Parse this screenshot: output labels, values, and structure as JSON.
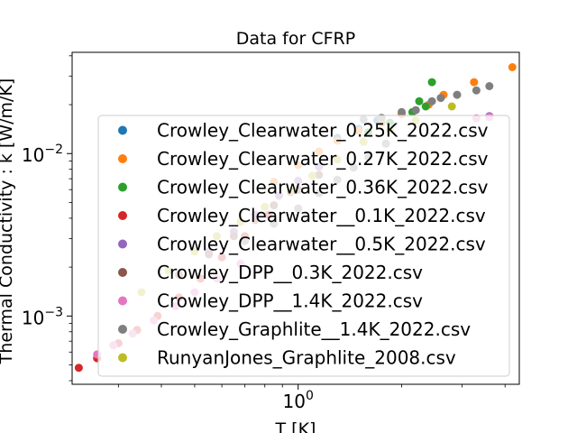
{
  "chart_data": {
    "type": "scatter",
    "title": "Data for CFRP",
    "xlabel": "T [K]",
    "ylabel": "Thermal Conductivity : k [W/m/K]",
    "xscale": "log",
    "yscale": "log",
    "xlim": [
      0.22,
      4.4
    ],
    "ylim": [
      0.00038,
      0.042
    ],
    "x_ticks": [
      {
        "value": 1,
        "base": "10",
        "exp": "0"
      }
    ],
    "y_ticks": [
      {
        "value": 0.001,
        "base": "10",
        "exp": "−3"
      },
      {
        "value": 0.01,
        "base": "10",
        "exp": "−2"
      }
    ],
    "grid": false,
    "legend_position": "center-right",
    "series": [
      {
        "name": "Crowley_Clearwater_0.25K_2022.csv",
        "color": "#1f77b4",
        "points": [
          [
            1.3,
            0.0125
          ],
          [
            1.5,
            0.0142
          ],
          [
            1.7,
            0.016
          ]
        ]
      },
      {
        "name": "Crowley_Clearwater_0.27K_2022.csv",
        "color": "#ff7f0e",
        "points": [
          [
            0.85,
            0.0067
          ],
          [
            1.0,
            0.0085
          ],
          [
            1.15,
            0.0103
          ],
          [
            1.3,
            0.012
          ],
          [
            1.5,
            0.0138
          ],
          [
            1.75,
            0.0155
          ],
          [
            2.0,
            0.0175
          ],
          [
            2.4,
            0.02
          ],
          [
            2.65,
            0.023
          ],
          [
            3.25,
            0.0275
          ],
          [
            4.2,
            0.034
          ]
        ]
      },
      {
        "name": "Crowley_Clearwater_0.36K_2022.csv",
        "color": "#2ca02c",
        "points": [
          [
            1.6,
            0.0135
          ],
          [
            1.85,
            0.0155
          ],
          [
            2.15,
            0.018
          ],
          [
            2.25,
            0.021
          ],
          [
            2.35,
            0.0195
          ],
          [
            2.45,
            0.0275
          ]
        ]
      },
      {
        "name": "Crowley_Clearwater__0.1K_2022.csv",
        "color": "#d62728",
        "points": [
          [
            0.23,
            0.00048
          ],
          [
            0.26,
            0.00055
          ],
          [
            0.3,
            0.00068
          ],
          [
            0.34,
            0.00082
          ],
          [
            0.39,
            0.001
          ],
          [
            0.45,
            0.0013
          ],
          [
            0.52,
            0.0017
          ],
          [
            0.6,
            0.0023
          ],
          [
            0.7,
            0.0031
          ],
          [
            0.82,
            0.0042
          ],
          [
            0.95,
            0.0058
          ]
        ]
      },
      {
        "name": "Crowley_Clearwater__0.5K_2022.csv",
        "color": "#9467bd",
        "points": [
          [
            0.55,
            0.0025
          ],
          [
            0.65,
            0.0033
          ],
          [
            0.75,
            0.0042
          ],
          [
            0.88,
            0.0055
          ],
          [
            1.0,
            0.0068
          ],
          [
            1.15,
            0.0083
          ],
          [
            3.6,
            0.017
          ]
        ]
      },
      {
        "name": "Crowley_DPP__0.3K_2022.csv",
        "color": "#8c564b",
        "points": [
          [
            0.45,
            0.0018
          ],
          [
            0.55,
            0.0024
          ],
          [
            0.65,
            0.0031
          ],
          [
            0.75,
            0.0039
          ],
          [
            0.85,
            0.0048
          ],
          [
            1.0,
            0.006
          ],
          [
            1.15,
            0.0074
          ]
        ]
      },
      {
        "name": "Crowley_DPP__1.4K_2022.csv",
        "color": "#e377c2",
        "points": [
          [
            0.26,
            0.00058
          ],
          [
            0.29,
            0.00066
          ],
          [
            0.33,
            0.00078
          ],
          [
            0.38,
            0.00094
          ],
          [
            0.44,
            0.00115
          ],
          [
            0.5,
            0.0014
          ],
          [
            0.58,
            0.0017
          ],
          [
            0.68,
            0.0021
          ],
          [
            3.3,
            0.0165
          ],
          [
            3.6,
            0.0168
          ]
        ]
      },
      {
        "name": "Crowley_Graphlite__1.4K_2022.csv",
        "color": "#7f7f7f",
        "points": [
          [
            0.7,
            0.0029
          ],
          [
            0.85,
            0.0037
          ],
          [
            1.0,
            0.0046
          ],
          [
            1.15,
            0.0057
          ],
          [
            1.3,
            0.0069
          ],
          [
            1.45,
            0.0082
          ],
          [
            1.6,
            0.0095
          ],
          [
            1.8,
            0.0115
          ],
          [
            1.55,
            0.0162
          ],
          [
            1.75,
            0.0166
          ],
          [
            2.0,
            0.018
          ],
          [
            2.2,
            0.0185
          ],
          [
            2.45,
            0.021
          ],
          [
            2.6,
            0.022
          ],
          [
            2.9,
            0.023
          ],
          [
            3.3,
            0.0245
          ],
          [
            3.6,
            0.026
          ]
        ]
      },
      {
        "name": "RunyanJones_Graphlite_2008.csv",
        "color": "#bcbd22",
        "points": [
          [
            0.35,
            0.0014
          ],
          [
            0.42,
            0.0019
          ],
          [
            0.5,
            0.0025
          ],
          [
            0.58,
            0.0031
          ],
          [
            0.68,
            0.0038
          ],
          [
            0.8,
            0.0047
          ],
          [
            0.95,
            0.0059
          ],
          [
            1.1,
            0.0073
          ],
          [
            1.3,
            0.0092
          ],
          [
            1.55,
            0.0118
          ],
          [
            1.85,
            0.014
          ],
          [
            2.2,
            0.016
          ],
          [
            2.8,
            0.0195
          ]
        ]
      }
    ]
  }
}
